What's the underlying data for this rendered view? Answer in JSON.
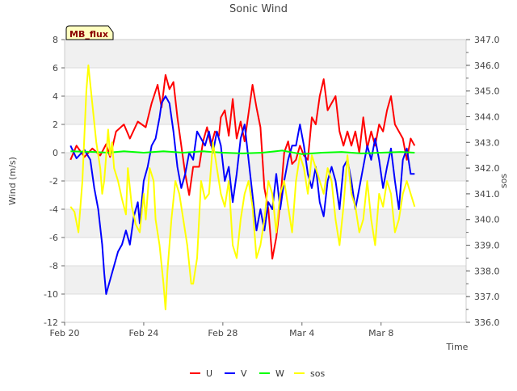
{
  "chart_data": {
    "type": "line",
    "title": "Sonic Wind",
    "badge": "MB_flux",
    "xlabel": "Time",
    "ylabel": "Wind (m/s)",
    "y2label": "sos",
    "xlim": [
      0,
      20.3
    ],
    "ylim": [
      -12,
      8
    ],
    "y2lim": [
      336,
      347
    ],
    "x_ticks": [
      {
        "value": 0,
        "label": "Feb 20"
      },
      {
        "value": 4,
        "label": "Feb 24"
      },
      {
        "value": 8,
        "label": "Feb 28"
      },
      {
        "value": 12,
        "label": "Mar 4"
      },
      {
        "value": 16,
        "label": "Mar 8"
      }
    ],
    "y_ticks": [
      {
        "value": -12,
        "label": "-12"
      },
      {
        "value": -10,
        "label": "-10"
      },
      {
        "value": -8,
        "label": "-8"
      },
      {
        "value": -6,
        "label": "-6"
      },
      {
        "value": -4,
        "label": "-4"
      },
      {
        "value": -2,
        "label": "-2"
      },
      {
        "value": 0,
        "label": "0"
      },
      {
        "value": 2,
        "label": "2"
      },
      {
        "value": 4,
        "label": "4"
      },
      {
        "value": 6,
        "label": "6"
      },
      {
        "value": 8,
        "label": "8"
      }
    ],
    "y2_ticks": [
      {
        "value": 336,
        "label": "336.0"
      },
      {
        "value": 337,
        "label": "337.0"
      },
      {
        "value": 338,
        "label": "338.0"
      },
      {
        "value": 339,
        "label": "339.0"
      },
      {
        "value": 340,
        "label": "340.0"
      },
      {
        "value": 341,
        "label": "341.0"
      },
      {
        "value": 342,
        "label": "342.0"
      },
      {
        "value": 343,
        "label": "343.0"
      },
      {
        "value": 344,
        "label": "344.0"
      },
      {
        "value": 345,
        "label": "345.0"
      },
      {
        "value": 346,
        "label": "346.0"
      },
      {
        "value": 347,
        "label": "347.0"
      }
    ],
    "series": [
      {
        "name": "U",
        "axis": "left",
        "color": "#ff0000",
        "points": [
          [
            0.3,
            -0.5
          ],
          [
            0.6,
            0.5
          ],
          [
            1.0,
            -0.3
          ],
          [
            1.4,
            0.3
          ],
          [
            1.8,
            -0.2
          ],
          [
            2.1,
            0.6
          ],
          [
            2.3,
            -0.3
          ],
          [
            2.6,
            1.5
          ],
          [
            3.0,
            2.0
          ],
          [
            3.3,
            1.0
          ],
          [
            3.7,
            2.2
          ],
          [
            4.1,
            1.8
          ],
          [
            4.4,
            3.5
          ],
          [
            4.7,
            4.8
          ],
          [
            4.9,
            3.2
          ],
          [
            5.1,
            5.5
          ],
          [
            5.3,
            4.5
          ],
          [
            5.5,
            5.0
          ],
          [
            5.7,
            2.5
          ],
          [
            5.9,
            0.5
          ],
          [
            6.1,
            -1.5
          ],
          [
            6.3,
            -3.0
          ],
          [
            6.5,
            -1.0
          ],
          [
            6.8,
            -1.0
          ],
          [
            7.0,
            0.8
          ],
          [
            7.2,
            1.8
          ],
          [
            7.4,
            0.5
          ],
          [
            7.6,
            1.5
          ],
          [
            7.8,
            1.2
          ],
          [
            7.9,
            2.5
          ],
          [
            8.1,
            3.0
          ],
          [
            8.3,
            1.2
          ],
          [
            8.5,
            3.8
          ],
          [
            8.7,
            1.0
          ],
          [
            8.9,
            2.2
          ],
          [
            9.1,
            0.8
          ],
          [
            9.3,
            2.8
          ],
          [
            9.5,
            4.8
          ],
          [
            9.7,
            3.2
          ],
          [
            9.9,
            1.8
          ],
          [
            10.1,
            -2.5
          ],
          [
            10.3,
            -4.0
          ],
          [
            10.5,
            -7.5
          ],
          [
            10.7,
            -6.0
          ],
          [
            10.9,
            -3.5
          ],
          [
            11.1,
            0.0
          ],
          [
            11.3,
            0.8
          ],
          [
            11.5,
            -0.8
          ],
          [
            11.7,
            -0.5
          ],
          [
            11.9,
            0.5
          ],
          [
            12.1,
            -0.2
          ],
          [
            12.3,
            -0.5
          ],
          [
            12.5,
            2.5
          ],
          [
            12.7,
            2.0
          ],
          [
            12.9,
            4.0
          ],
          [
            13.1,
            5.2
          ],
          [
            13.3,
            3.0
          ],
          [
            13.5,
            3.5
          ],
          [
            13.7,
            4.0
          ],
          [
            13.9,
            1.5
          ],
          [
            14.1,
            0.5
          ],
          [
            14.3,
            1.5
          ],
          [
            14.5,
            0.5
          ],
          [
            14.7,
            1.5
          ],
          [
            14.9,
            0.0
          ],
          [
            15.1,
            2.5
          ],
          [
            15.3,
            0.3
          ],
          [
            15.5,
            1.5
          ],
          [
            15.7,
            0.5
          ],
          [
            15.9,
            2.0
          ],
          [
            16.1,
            1.5
          ],
          [
            16.3,
            3.0
          ],
          [
            16.5,
            4.0
          ],
          [
            16.7,
            2.0
          ],
          [
            16.9,
            1.5
          ],
          [
            17.1,
            1.0
          ],
          [
            17.3,
            -0.5
          ],
          [
            17.5,
            1.0
          ],
          [
            17.7,
            0.5
          ]
        ]
      },
      {
        "name": "V",
        "axis": "left",
        "color": "#0000ff",
        "points": [
          [
            0.3,
            0.5
          ],
          [
            0.6,
            -0.4
          ],
          [
            1.0,
            0.2
          ],
          [
            1.3,
            -0.5
          ],
          [
            1.5,
            -2.5
          ],
          [
            1.7,
            -4.0
          ],
          [
            1.9,
            -6.5
          ],
          [
            2.0,
            -8.5
          ],
          [
            2.1,
            -10.0
          ],
          [
            2.3,
            -9.0
          ],
          [
            2.5,
            -8.0
          ],
          [
            2.7,
            -7.0
          ],
          [
            2.9,
            -6.5
          ],
          [
            3.1,
            -5.5
          ],
          [
            3.3,
            -6.5
          ],
          [
            3.5,
            -4.5
          ],
          [
            3.7,
            -3.5
          ],
          [
            3.8,
            -5.0
          ],
          [
            4.0,
            -2.0
          ],
          [
            4.2,
            -1.0
          ],
          [
            4.4,
            0.5
          ],
          [
            4.6,
            1.0
          ],
          [
            4.8,
            2.5
          ],
          [
            4.9,
            3.5
          ],
          [
            5.1,
            4.0
          ],
          [
            5.3,
            3.5
          ],
          [
            5.5,
            1.5
          ],
          [
            5.7,
            -1.0
          ],
          [
            5.9,
            -2.5
          ],
          [
            6.1,
            -1.5
          ],
          [
            6.3,
            0.0
          ],
          [
            6.5,
            -0.5
          ],
          [
            6.7,
            1.5
          ],
          [
            6.9,
            1.0
          ],
          [
            7.1,
            0.5
          ],
          [
            7.3,
            1.5
          ],
          [
            7.5,
            0.0
          ],
          [
            7.7,
            1.5
          ],
          [
            7.9,
            0.5
          ],
          [
            8.1,
            -2.0
          ],
          [
            8.3,
            -1.0
          ],
          [
            8.5,
            -3.5
          ],
          [
            8.7,
            -1.5
          ],
          [
            8.9,
            1.0
          ],
          [
            9.1,
            2.0
          ],
          [
            9.3,
            -0.5
          ],
          [
            9.5,
            -3.0
          ],
          [
            9.7,
            -5.5
          ],
          [
            9.9,
            -4.0
          ],
          [
            10.1,
            -5.5
          ],
          [
            10.3,
            -3.5
          ],
          [
            10.5,
            -4.0
          ],
          [
            10.7,
            -1.5
          ],
          [
            10.9,
            -4.0
          ],
          [
            11.1,
            -2.0
          ],
          [
            11.3,
            -0.5
          ],
          [
            11.5,
            0.5
          ],
          [
            11.7,
            0.5
          ],
          [
            11.9,
            2.0
          ],
          [
            12.1,
            0.5
          ],
          [
            12.3,
            -1.5
          ],
          [
            12.5,
            -2.5
          ],
          [
            12.7,
            -1.0
          ],
          [
            12.9,
            -3.5
          ],
          [
            13.1,
            -4.5
          ],
          [
            13.3,
            -2.0
          ],
          [
            13.5,
            -1.0
          ],
          [
            13.7,
            -2.0
          ],
          [
            13.9,
            -4.0
          ],
          [
            14.1,
            -1.0
          ],
          [
            14.3,
            -0.5
          ],
          [
            14.5,
            -2.0
          ],
          [
            14.7,
            -4.0
          ],
          [
            14.9,
            -2.5
          ],
          [
            15.1,
            -1.0
          ],
          [
            15.3,
            0.5
          ],
          [
            15.5,
            -0.5
          ],
          [
            15.7,
            1.0
          ],
          [
            15.9,
            -0.5
          ],
          [
            16.1,
            -2.5
          ],
          [
            16.3,
            -1.0
          ],
          [
            16.5,
            0.3
          ],
          [
            16.7,
            -2.0
          ],
          [
            16.9,
            -4.0
          ],
          [
            17.1,
            -0.5
          ],
          [
            17.3,
            0.3
          ],
          [
            17.5,
            -1.5
          ],
          [
            17.7,
            -1.5
          ]
        ]
      },
      {
        "name": "W",
        "axis": "left",
        "color": "#00ff00",
        "points": [
          [
            0.3,
            0.1
          ],
          [
            1.5,
            0.05
          ],
          [
            2.2,
            0.0
          ],
          [
            3.0,
            0.1
          ],
          [
            4.0,
            0.0
          ],
          [
            5.0,
            0.1
          ],
          [
            6.0,
            0.0
          ],
          [
            7.0,
            0.1
          ],
          [
            8.0,
            0.0
          ],
          [
            9.0,
            -0.05
          ],
          [
            10.0,
            0.0
          ],
          [
            11.0,
            0.15
          ],
          [
            12.0,
            -0.1
          ],
          [
            13.0,
            0.0
          ],
          [
            14.0,
            0.05
          ],
          [
            15.0,
            -0.05
          ],
          [
            16.0,
            0.0
          ],
          [
            17.0,
            0.05
          ],
          [
            17.7,
            0.0
          ]
        ]
      },
      {
        "name": "sos",
        "axis": "right",
        "color": "#ffff00",
        "points": [
          [
            0.3,
            340.5
          ],
          [
            0.5,
            340.3
          ],
          [
            0.7,
            339.5
          ],
          [
            0.9,
            341.5
          ],
          [
            1.1,
            345.0
          ],
          [
            1.2,
            346.0
          ],
          [
            1.4,
            344.5
          ],
          [
            1.6,
            343.0
          ],
          [
            1.8,
            342.0
          ],
          [
            1.9,
            341.0
          ],
          [
            2.0,
            341.5
          ],
          [
            2.2,
            343.5
          ],
          [
            2.3,
            342.5
          ],
          [
            2.4,
            343.0
          ],
          [
            2.5,
            342.0
          ],
          [
            2.7,
            341.5
          ],
          [
            2.9,
            340.8
          ],
          [
            3.1,
            340.2
          ],
          [
            3.2,
            342.0
          ],
          [
            3.4,
            340.5
          ],
          [
            3.6,
            339.8
          ],
          [
            3.8,
            339.5
          ],
          [
            4.0,
            341.0
          ],
          [
            4.1,
            340.0
          ],
          [
            4.3,
            342.0
          ],
          [
            4.5,
            341.5
          ],
          [
            4.6,
            340.0
          ],
          [
            4.8,
            339.0
          ],
          [
            5.0,
            337.5
          ],
          [
            5.1,
            336.5
          ],
          [
            5.2,
            338.0
          ],
          [
            5.4,
            340.0
          ],
          [
            5.6,
            341.5
          ],
          [
            5.8,
            341.0
          ],
          [
            6.0,
            340.0
          ],
          [
            6.2,
            339.0
          ],
          [
            6.4,
            337.5
          ],
          [
            6.5,
            337.5
          ],
          [
            6.7,
            338.5
          ],
          [
            6.9,
            341.5
          ],
          [
            7.1,
            340.8
          ],
          [
            7.3,
            341.0
          ],
          [
            7.5,
            343.0
          ],
          [
            7.7,
            342.0
          ],
          [
            7.9,
            341.0
          ],
          [
            8.1,
            340.5
          ],
          [
            8.3,
            341.5
          ],
          [
            8.5,
            339.0
          ],
          [
            8.7,
            338.5
          ],
          [
            8.9,
            340.0
          ],
          [
            9.1,
            341.0
          ],
          [
            9.3,
            341.5
          ],
          [
            9.5,
            340.5
          ],
          [
            9.7,
            338.5
          ],
          [
            9.9,
            339.0
          ],
          [
            10.1,
            340.0
          ],
          [
            10.3,
            341.5
          ],
          [
            10.5,
            341.0
          ],
          [
            10.7,
            339.5
          ],
          [
            10.9,
            341.0
          ],
          [
            11.1,
            341.5
          ],
          [
            11.3,
            340.5
          ],
          [
            11.5,
            339.5
          ],
          [
            11.7,
            341.5
          ],
          [
            11.9,
            342.5
          ],
          [
            12.1,
            342.0
          ],
          [
            12.3,
            341.0
          ],
          [
            12.5,
            342.5
          ],
          [
            12.7,
            342.0
          ],
          [
            12.9,
            341.5
          ],
          [
            13.1,
            341.0
          ],
          [
            13.3,
            342.0
          ],
          [
            13.5,
            341.5
          ],
          [
            13.7,
            340.0
          ],
          [
            13.9,
            339.0
          ],
          [
            14.1,
            340.5
          ],
          [
            14.3,
            342.5
          ],
          [
            14.5,
            341.0
          ],
          [
            14.7,
            340.5
          ],
          [
            14.9,
            339.5
          ],
          [
            15.1,
            340.0
          ],
          [
            15.3,
            341.5
          ],
          [
            15.5,
            340.0
          ],
          [
            15.7,
            339.0
          ],
          [
            15.9,
            341.0
          ],
          [
            16.1,
            340.5
          ],
          [
            16.3,
            341.5
          ],
          [
            16.5,
            341.0
          ],
          [
            16.7,
            339.5
          ],
          [
            16.9,
            340.0
          ],
          [
            17.1,
            341.0
          ],
          [
            17.3,
            341.5
          ],
          [
            17.5,
            341.0
          ],
          [
            17.7,
            340.5
          ]
        ]
      }
    ],
    "legend": {
      "position": "bottom-center",
      "entries": [
        "U",
        "V",
        "W",
        "sos"
      ]
    },
    "band_color": "#f0f0f0",
    "grid": true
  }
}
